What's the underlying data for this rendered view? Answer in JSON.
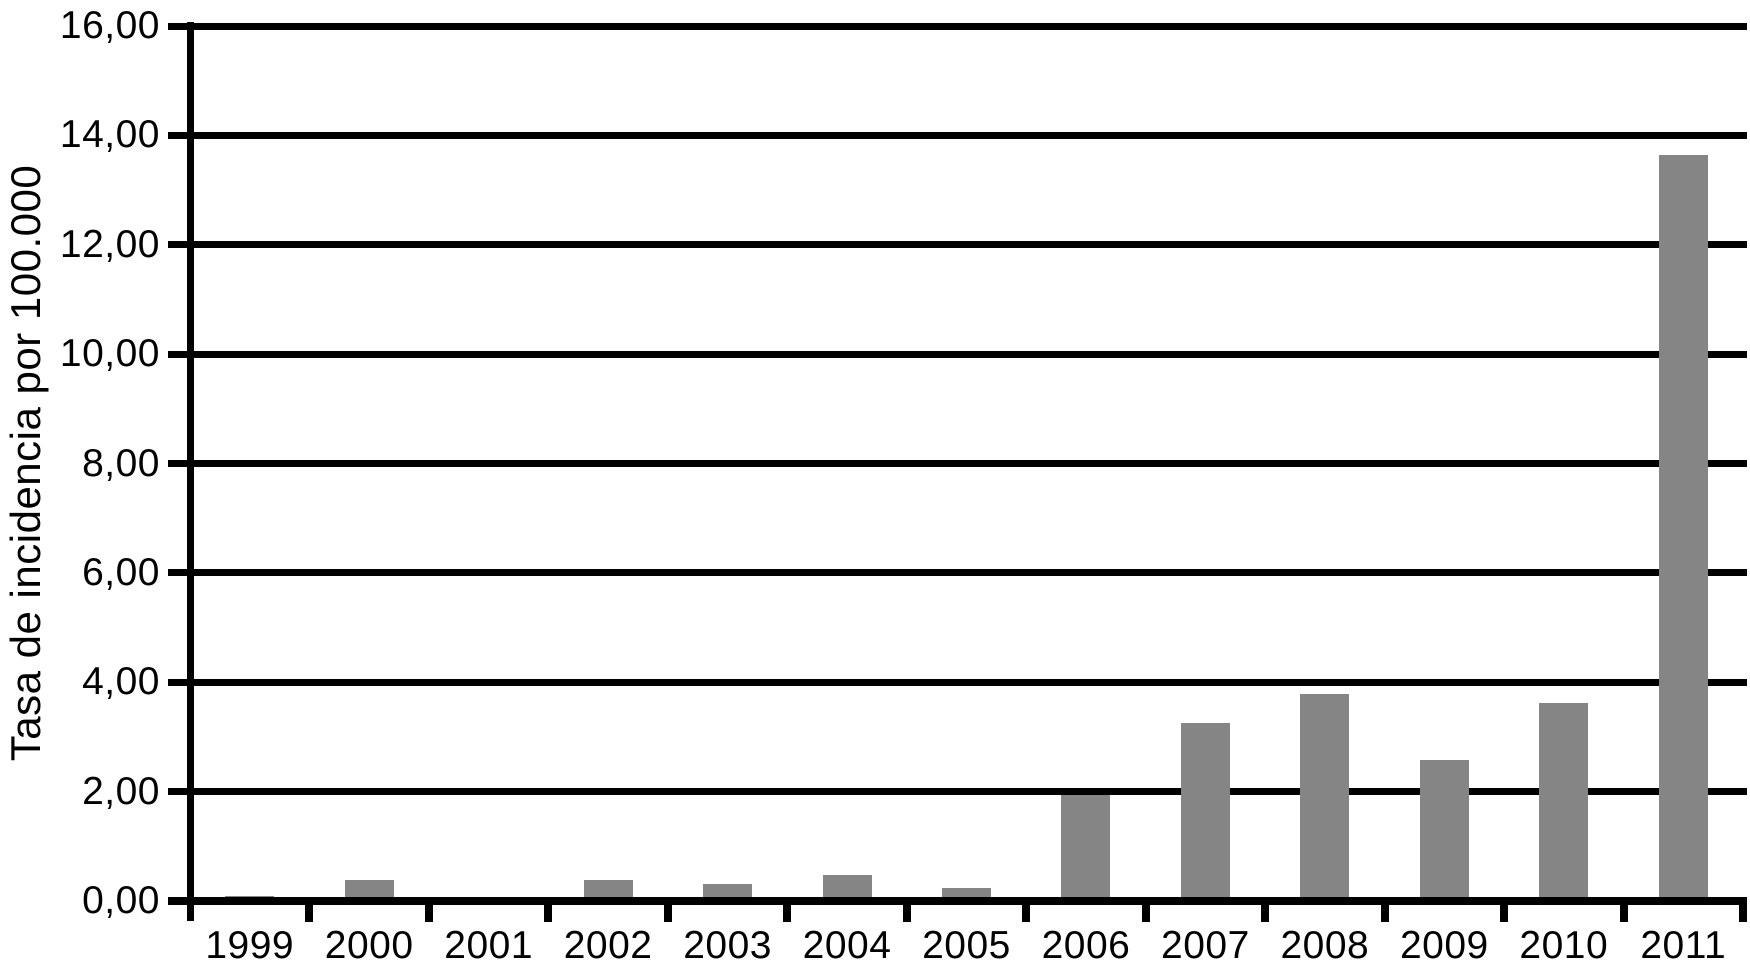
{
  "chart_data": {
    "type": "bar",
    "title": "",
    "xlabel": "",
    "ylabel": "Tasa de incidencia por 100.000",
    "categories": [
      "1999",
      "2000",
      "2001",
      "2002",
      "2003",
      "2004",
      "2005",
      "2006",
      "2007",
      "2008",
      "2009",
      "2010",
      "2011"
    ],
    "values": [
      0.1,
      0.38,
      0.0,
      0.38,
      0.32,
      0.48,
      0.23,
      1.94,
      3.26,
      3.78,
      2.57,
      3.62,
      13.64
    ],
    "ylim": [
      0,
      16
    ],
    "ytick_step": 2,
    "ytick_labels": [
      "0,00",
      "2,00",
      "4,00",
      "6,00",
      "8,00",
      "10,00",
      "12,00",
      "14,00",
      "16,00"
    ],
    "grid": true,
    "legend": false,
    "bar_color": "#858585",
    "line_color": "#000000",
    "background": "#ffffff"
  }
}
